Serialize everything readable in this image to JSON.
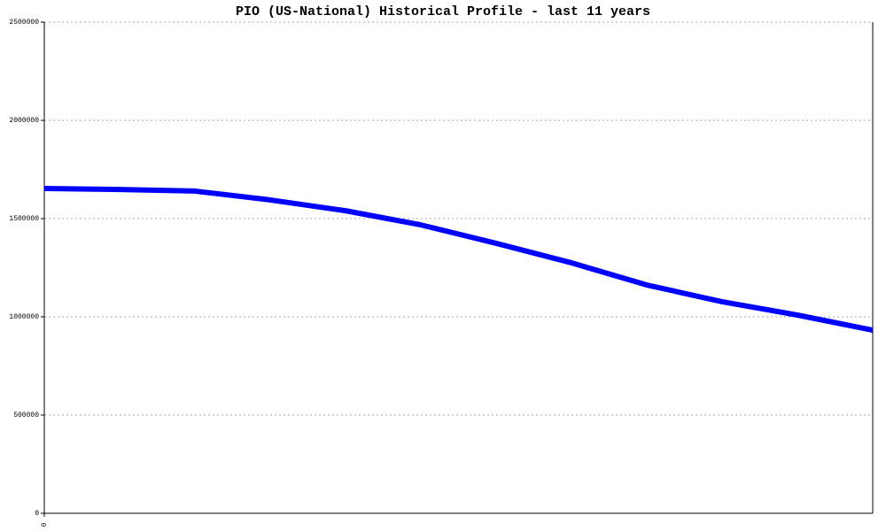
{
  "chart_data": {
    "type": "line",
    "title": "PIO (US-National) Historical Profile - last 11 years",
    "x": [
      0,
      1,
      2,
      3,
      4,
      5,
      6,
      7,
      8,
      9,
      10,
      11
    ],
    "series": [
      {
        "name": "PIO",
        "color": "#0000ff",
        "values": [
          1653000,
          1648000,
          1640000,
          1595000,
          1540000,
          1468000,
          1374000,
          1275000,
          1162000,
          1077000,
          1009000,
          932000
        ]
      }
    ],
    "xlim": [
      0,
      11
    ],
    "xticks": [
      0
    ],
    "ylim": [
      0,
      2500000
    ],
    "yticks": [
      0,
      500000,
      1000000,
      1500000,
      2000000,
      2500000
    ],
    "grid": true
  }
}
